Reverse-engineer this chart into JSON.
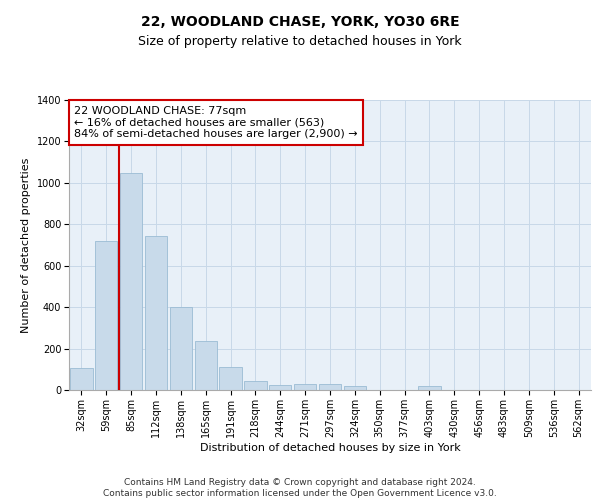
{
  "title": "22, WOODLAND CHASE, YORK, YO30 6RE",
  "subtitle": "Size of property relative to detached houses in York",
  "xlabel": "Distribution of detached houses by size in York",
  "ylabel": "Number of detached properties",
  "categories": [
    "32sqm",
    "59sqm",
    "85sqm",
    "112sqm",
    "138sqm",
    "165sqm",
    "191sqm",
    "218sqm",
    "244sqm",
    "271sqm",
    "297sqm",
    "324sqm",
    "350sqm",
    "377sqm",
    "403sqm",
    "430sqm",
    "456sqm",
    "483sqm",
    "509sqm",
    "536sqm",
    "562sqm"
  ],
  "values": [
    108,
    720,
    1050,
    745,
    400,
    235,
    110,
    45,
    25,
    28,
    28,
    18,
    0,
    0,
    18,
    0,
    0,
    0,
    0,
    0,
    0
  ],
  "bar_color": "#c8daea",
  "bar_edge_color": "#9bbcd4",
  "grid_color": "#c8d8e8",
  "background_color": "#e8f0f8",
  "vline_color": "#cc0000",
  "vline_x_index": 1.5,
  "annotation_text": "22 WOODLAND CHASE: 77sqm\n← 16% of detached houses are smaller (563)\n84% of semi-detached houses are larger (2,900) →",
  "annotation_box_color": "#ffffff",
  "annotation_box_edge": "#cc0000",
  "ylim": [
    0,
    1400
  ],
  "yticks": [
    0,
    200,
    400,
    600,
    800,
    1000,
    1200,
    1400
  ],
  "footer": "Contains HM Land Registry data © Crown copyright and database right 2024.\nContains public sector information licensed under the Open Government Licence v3.0.",
  "title_fontsize": 10,
  "subtitle_fontsize": 9,
  "axis_label_fontsize": 8,
  "tick_fontsize": 7,
  "annotation_fontsize": 8,
  "footer_fontsize": 6.5
}
